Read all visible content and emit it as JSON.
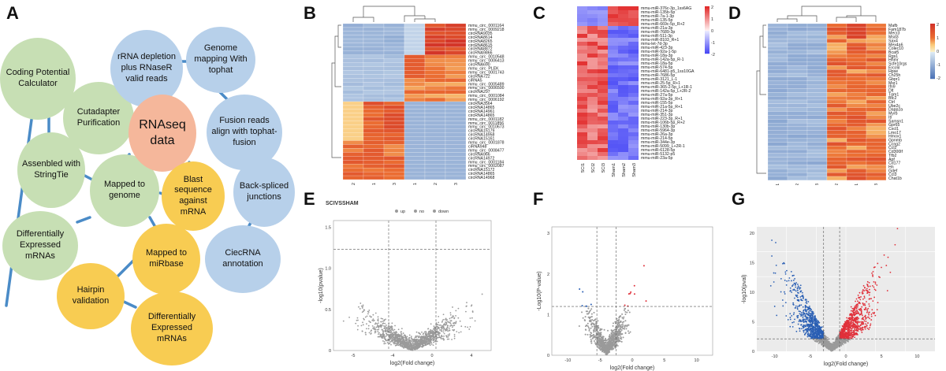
{
  "panels": {
    "A": "A",
    "B": "B",
    "C": "C",
    "D": "D",
    "E": "E",
    "F": "F",
    "G": "G"
  },
  "flowchart": {
    "nodes": [
      {
        "id": "coding",
        "text": "Coding Potential Calculator",
        "color": "green"
      },
      {
        "id": "cutadapter",
        "text": "Cutadapter Purification",
        "color": "green"
      },
      {
        "id": "stringtie",
        "text": "Assenbled with StringTie",
        "color": "green"
      },
      {
        "id": "mapped_genome",
        "text": "Mapped to genome",
        "color": "green"
      },
      {
        "id": "diff_green",
        "text": "Differentially Expressed mRNAs",
        "color": "green"
      },
      {
        "id": "rrna",
        "text": "rRNA depletion plus RNaseR valid reads",
        "color": "blue"
      },
      {
        "id": "genome_mapping",
        "text": "Genome mapping With tophat",
        "color": "blue"
      },
      {
        "id": "fusion",
        "text": "Fusion reads align with tophat-fusion",
        "color": "blue"
      },
      {
        "id": "backspliced",
        "text": "Back-spliced junctions",
        "color": "blue"
      },
      {
        "id": "ciecrna",
        "text": "CiecRNA annotation",
        "color": "blue"
      },
      {
        "id": "rnaseq",
        "text": "RNAseq data",
        "color": "orange"
      },
      {
        "id": "blast",
        "text": "Blast sequence against mRNA",
        "color": "yellow"
      },
      {
        "id": "mirbase",
        "text": "Mapped to miRbase",
        "color": "yellow"
      },
      {
        "id": "hairpin",
        "text": "Hairpin validation",
        "color": "yellow"
      },
      {
        "id": "diff_yellow",
        "text": "Differentially Expressed mRNAs",
        "color": "yellow"
      }
    ]
  },
  "heatmap_B": {
    "row_labels": [
      "mmu_circ_0001164",
      "mmu_circ_0009218",
      "circRNA9035",
      "circRNA8614",
      "circRNA8265",
      "circRNA8615",
      "circRNA8872",
      "circRNA9866",
      "mmu_circ_0010548",
      "mmu_circ_0006413",
      "circRNA690",
      "mmu_circ_PLEK",
      "mmu_circ_0001743",
      "circRNA722",
      "ciRNA5",
      "mmu_circ_0005489",
      "mmu_circ_0006500",
      "circRNA297",
      "mmu_circ_0001084",
      "mmu_circ_0006192",
      "circRNA3564",
      "circRNA14865",
      "circRNA14961",
      "circRNA14865",
      "mmu_circ_0001182",
      "mmu_circ_0011856",
      "mmu_circ_0010673",
      "circRNA15179",
      "circRNA14958",
      "circRNA15161",
      "mmu_circ_0001878",
      "ciRNA948",
      "mmu_circ_0008477",
      "circRNA966",
      "circRNA14972",
      "mmu_circ_0001184",
      "mmu_circ_0002087",
      "circRNA15172",
      "circRNA14865",
      "circRNA14968"
    ],
    "col_labels": [
      "con2",
      "con1",
      "con3",
      "sci1",
      "sci2",
      "sci3"
    ]
  },
  "heatmap_C": {
    "row_labels": [
      "mmu-miR-376c-3p_1ss6AG",
      "mmu-miR-135b-5p",
      "mmu-miR-7a-1-3p",
      "mmu-miR-135-5p",
      "mmu-miR-669c-5p_R+2",
      "mmu-miR-21a-3p",
      "mmu-miR-7689-3p",
      "mmu-miR-511-3p",
      "mmu-miR-8103_R+1",
      "mmu-let-7d-3p",
      "mmu-miR-423-3p",
      "mmu-miR-92a-1-5p",
      "mmu-miR-18a-3p",
      "mmu-miR-142a-5p_R-1",
      "mmu-miR-18a-5p",
      "mmu-miR-574-5p",
      "mmu-miR-6481-p5_1ss10GA",
      "mmu-miR-7686-5p",
      "mmu-miR-3121_L-1",
      "mmu-miR-25-5p_R+1",
      "mmu-miR-365-2-5p_L+1R-1",
      "mmu-miR-142a-5p_L+2R-2",
      "mmu-miR-27a-5p",
      "mmu-miR-92a-3p_R+1",
      "mmu-miR-155-5p",
      "mmu-miR-21a-5p_R+1",
      "mmu-miR-214-3p",
      "mmu-miR-351-3p",
      "mmu-miR-223-3p_R+1",
      "mmu-miR-106b-5p_R+2",
      "mmu-miR-130b-3p",
      "mmu-miR-5964-3p",
      "mmu-miR-26a-3p",
      "mmu-miR-214-5p",
      "mmu-miR-344e-3p",
      "mmu-miR-5099_L+2R-1",
      "mmu-miR-6128-5p",
      "mmu-miR-5132-p5",
      "mmu-miR-23a-5p"
    ],
    "col_labels": [
      "SCI1",
      "SCI2",
      "SCI3",
      "Sham1",
      "Sham2",
      "Sham3"
    ],
    "legend_ticks": [
      "2",
      "1",
      "0",
      "-1",
      "-2"
    ]
  },
  "heatmap_D": {
    "row_labels": [
      "Mafb",
      "Fam187b",
      "Mecr3",
      "Msd3",
      "Sax4",
      "Mex4a6",
      "Colec10",
      "Bcat5",
      "Rgs1",
      "Hhmr",
      "Scfe10rgs",
      "Ercc6l",
      "Hpse",
      "Ch25h",
      "Gbpr1",
      "Msr1",
      "Ifn9",
      "Dlt",
      "Tgm1",
      "Btc2",
      "Ctrl",
      "Ube2c",
      "Dapp2a",
      "Myrb",
      "Itl",
      "Samsn1",
      "Gpr65",
      "Cxcl1",
      "Lmo17",
      "Hmox1",
      "Gpnmb",
      "Ccng2",
      "Ccl2",
      "Cd300lf",
      "Tfb2",
      "Apf",
      "Cd177",
      "Hn",
      "Gdef",
      "Ccl3",
      "Chat1b"
    ],
    "col_labels": [
      "con1",
      "con2",
      "con3",
      "sci2",
      "sci1",
      "sci3"
    ],
    "legend_ticks": [
      "2",
      "1",
      "0",
      "-1",
      "-2"
    ]
  },
  "volcano_E": {
    "title": "SCIVSSHAM",
    "legend": [
      "up",
      "no",
      "down"
    ],
    "xlabel": "log2(Fold change)",
    "ylabel": "-log10(pvalue)",
    "xticks": [
      "-5",
      "-4",
      "0",
      "4"
    ],
    "yticks": [
      "0",
      "0.5",
      "1.0",
      "1.5"
    ]
  },
  "volcano_F": {
    "xlabel": "log2(Fold change)",
    "ylabel": "-Log10(P-value)",
    "xticks": [
      "-10",
      "-5",
      "0",
      "5",
      "10"
    ],
    "yticks": [
      "0",
      "1",
      "2",
      "3"
    ]
  },
  "volcano_G": {
    "xlabel": "log2(Fold change)",
    "ylabel": "-log10(pval)",
    "xticks": [
      "-10",
      "-5",
      "0",
      "5",
      "10"
    ],
    "yticks": [
      "0",
      "5",
      "10",
      "15",
      "20"
    ]
  },
  "colors": {
    "green": "#c7dfb4",
    "blue": "#b7d0ea",
    "yellow": "#f8cc52",
    "orange": "#f5b79b",
    "edge": "#4a8bc7",
    "up": "#e0303a",
    "down": "#2a5fb4",
    "no": "#9a9a9a"
  }
}
